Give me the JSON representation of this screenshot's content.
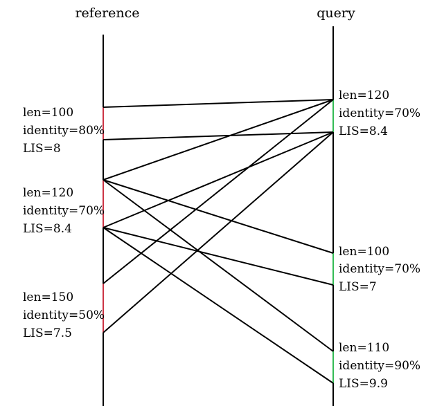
{
  "axes": {
    "reference": {
      "label": "reference"
    },
    "query": {
      "label": "query"
    }
  },
  "colors": {
    "reference_segment": "#cc3344",
    "query_segment": "#33bb55",
    "line": "#000000"
  },
  "reference_segments": [
    {
      "id": "r1",
      "len": "len=100",
      "identity": "identity=80%",
      "lis": "LIS=8"
    },
    {
      "id": "r2",
      "len": "len=120",
      "identity": "identity=70%",
      "lis": "LIS=8.4"
    },
    {
      "id": "r3",
      "len": "len=150",
      "identity": "identity=50%",
      "lis": "LIS=7.5"
    }
  ],
  "query_segments": [
    {
      "id": "q1",
      "len": "len=120",
      "identity": "identity=70%",
      "lis": "LIS=8.4"
    },
    {
      "id": "q2",
      "len": "len=100",
      "identity": "identity=70%",
      "lis": "LIS=7"
    },
    {
      "id": "q3",
      "len": "len=110",
      "identity": "identity=90%",
      "lis": "LIS=9.9"
    }
  ]
}
